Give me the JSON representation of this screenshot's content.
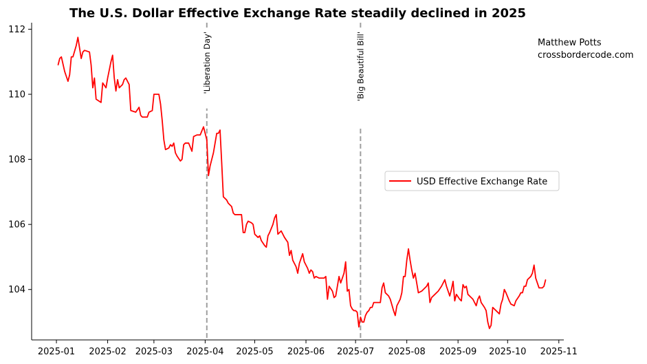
{
  "chart_data": {
    "type": "line",
    "title": "The U.S. Dollar Effective Exchange Rate steadily declined in 2025",
    "xlabel": "",
    "ylabel": "",
    "x_ticks": [
      "2025-01",
      "2025-02",
      "2025-03",
      "2025-04",
      "2025-05",
      "2025-06",
      "2025-07",
      "2025-08",
      "2025-09",
      "2025-10",
      "2025-11"
    ],
    "y_ticks": [
      104,
      106,
      108,
      110,
      112
    ],
    "ylim": [
      102.45,
      112.2
    ],
    "xlim": [
      "2024-12-17",
      "2025-11-04"
    ],
    "legend": {
      "placement": "center-right",
      "label": "USD Effective Exchange Rate"
    },
    "annotations": [
      {
        "date": "2025-04-02",
        "label": "'Liberation Day'"
      },
      {
        "date": "2025-07-04",
        "label": "'Big Beautiful Bill'"
      }
    ],
    "credit": [
      "Matthew Potts",
      "crossbordercode.com"
    ],
    "series": [
      {
        "name": "USD Effective Exchange Rate",
        "color": "#ff0000",
        "points": [
          [
            "2025-01-02",
            110.9
          ],
          [
            "2025-01-03",
            111.1
          ],
          [
            "2025-01-04",
            111.15
          ],
          [
            "2025-01-06",
            110.7
          ],
          [
            "2025-01-08",
            110.4
          ],
          [
            "2025-01-09",
            110.6
          ],
          [
            "2025-01-10",
            111.15
          ],
          [
            "2025-01-11",
            111.15
          ],
          [
            "2025-01-13",
            111.5
          ],
          [
            "2025-01-14",
            111.75
          ],
          [
            "2025-01-16",
            111.1
          ],
          [
            "2025-01-17",
            111.3
          ],
          [
            "2025-01-18",
            111.35
          ],
          [
            "2025-01-21",
            111.3
          ],
          [
            "2025-01-22",
            110.9
          ],
          [
            "2025-01-23",
            110.2
          ],
          [
            "2025-01-24",
            110.5
          ],
          [
            "2025-01-25",
            109.85
          ],
          [
            "2025-01-28",
            109.75
          ],
          [
            "2025-01-29",
            110.35
          ],
          [
            "2025-01-31",
            110.2
          ],
          [
            "2025-02-01",
            110.5
          ],
          [
            "2025-02-03",
            111.0
          ],
          [
            "2025-02-04",
            111.2
          ],
          [
            "2025-02-05",
            110.5
          ],
          [
            "2025-02-06",
            110.1
          ],
          [
            "2025-02-07",
            110.45
          ],
          [
            "2025-02-08",
            110.2
          ],
          [
            "2025-02-10",
            110.3
          ],
          [
            "2025-02-11",
            110.45
          ],
          [
            "2025-02-12",
            110.5
          ],
          [
            "2025-02-14",
            110.3
          ],
          [
            "2025-02-15",
            109.5
          ],
          [
            "2025-02-18",
            109.45
          ],
          [
            "2025-02-20",
            109.6
          ],
          [
            "2025-02-21",
            109.35
          ],
          [
            "2025-02-22",
            109.3
          ],
          [
            "2025-02-25",
            109.3
          ],
          [
            "2025-02-26",
            109.45
          ],
          [
            "2025-02-28",
            109.5
          ],
          [
            "2025-03-01",
            110.0
          ],
          [
            "2025-03-04",
            110.0
          ],
          [
            "2025-03-05",
            109.7
          ],
          [
            "2025-03-06",
            109.2
          ],
          [
            "2025-03-07",
            108.6
          ],
          [
            "2025-03-08",
            108.3
          ],
          [
            "2025-03-10",
            108.35
          ],
          [
            "2025-03-11",
            108.45
          ],
          [
            "2025-03-12",
            108.4
          ],
          [
            "2025-03-13",
            108.5
          ],
          [
            "2025-03-14",
            108.2
          ],
          [
            "2025-03-15",
            108.1
          ],
          [
            "2025-03-17",
            107.95
          ],
          [
            "2025-03-18",
            108.0
          ],
          [
            "2025-03-19",
            108.45
          ],
          [
            "2025-03-20",
            108.5
          ],
          [
            "2025-03-21",
            108.5
          ],
          [
            "2025-03-22",
            108.5
          ],
          [
            "2025-03-24",
            108.25
          ],
          [
            "2025-03-25",
            108.7
          ],
          [
            "2025-03-27",
            108.75
          ],
          [
            "2025-03-28",
            108.75
          ],
          [
            "2025-03-29",
            108.75
          ],
          [
            "2025-03-31",
            109.0
          ],
          [
            "2025-04-01",
            108.8
          ],
          [
            "2025-04-02",
            108.6
          ],
          [
            "2025-04-03",
            107.5
          ],
          [
            "2025-04-04",
            107.8
          ],
          [
            "2025-04-06",
            108.2
          ],
          [
            "2025-04-07",
            108.5
          ],
          [
            "2025-04-08",
            108.8
          ],
          [
            "2025-04-09",
            108.8
          ],
          [
            "2025-04-10",
            108.9
          ],
          [
            "2025-04-11",
            107.9
          ],
          [
            "2025-04-12",
            106.85
          ],
          [
            "2025-04-14",
            106.75
          ],
          [
            "2025-04-15",
            106.65
          ],
          [
            "2025-04-17",
            106.55
          ],
          [
            "2025-04-18",
            106.35
          ],
          [
            "2025-04-19",
            106.3
          ],
          [
            "2025-04-21",
            106.3
          ],
          [
            "2025-04-23",
            106.3
          ],
          [
            "2025-04-24",
            105.75
          ],
          [
            "2025-04-25",
            105.75
          ],
          [
            "2025-04-26",
            106.0
          ],
          [
            "2025-04-27",
            106.1
          ],
          [
            "2025-04-29",
            106.05
          ],
          [
            "2025-04-30",
            106.0
          ],
          [
            "2025-05-01",
            105.7
          ],
          [
            "2025-05-02",
            105.65
          ],
          [
            "2025-05-03",
            105.6
          ],
          [
            "2025-05-04",
            105.65
          ],
          [
            "2025-05-05",
            105.5
          ],
          [
            "2025-05-07",
            105.35
          ],
          [
            "2025-05-08",
            105.3
          ],
          [
            "2025-05-09",
            105.65
          ],
          [
            "2025-05-10",
            105.75
          ],
          [
            "2025-05-12",
            106.0
          ],
          [
            "2025-05-13",
            106.2
          ],
          [
            "2025-05-14",
            106.3
          ],
          [
            "2025-05-15",
            105.7
          ],
          [
            "2025-05-16",
            105.75
          ],
          [
            "2025-05-17",
            105.8
          ],
          [
            "2025-05-19",
            105.6
          ],
          [
            "2025-05-21",
            105.45
          ],
          [
            "2025-05-22",
            105.05
          ],
          [
            "2025-05-23",
            105.2
          ],
          [
            "2025-05-24",
            104.9
          ],
          [
            "2025-05-26",
            104.7
          ],
          [
            "2025-05-27",
            104.5
          ],
          [
            "2025-05-28",
            104.8
          ],
          [
            "2025-05-30",
            105.1
          ],
          [
            "2025-05-31",
            104.85
          ],
          [
            "2025-06-02",
            104.65
          ],
          [
            "2025-06-03",
            104.5
          ],
          [
            "2025-06-04",
            104.6
          ],
          [
            "2025-06-05",
            104.55
          ],
          [
            "2025-06-06",
            104.35
          ],
          [
            "2025-06-07",
            104.4
          ],
          [
            "2025-06-09",
            104.35
          ],
          [
            "2025-06-10",
            104.35
          ],
          [
            "2025-06-12",
            104.35
          ],
          [
            "2025-06-13",
            104.4
          ],
          [
            "2025-06-14",
            103.7
          ],
          [
            "2025-06-15",
            104.1
          ],
          [
            "2025-06-17",
            103.95
          ],
          [
            "2025-06-18",
            103.75
          ],
          [
            "2025-06-19",
            103.8
          ],
          [
            "2025-06-20",
            104.1
          ],
          [
            "2025-06-21",
            104.4
          ],
          [
            "2025-06-22",
            104.2
          ],
          [
            "2025-06-24",
            104.5
          ],
          [
            "2025-06-25",
            104.85
          ],
          [
            "2025-06-26",
            103.95
          ],
          [
            "2025-06-27",
            104.0
          ],
          [
            "2025-06-28",
            103.5
          ],
          [
            "2025-06-29",
            103.4
          ],
          [
            "2025-06-30",
            103.35
          ],
          [
            "2025-07-01",
            103.35
          ],
          [
            "2025-07-02",
            103.3
          ],
          [
            "2025-07-03",
            102.85
          ],
          [
            "2025-07-04",
            103.15
          ],
          [
            "2025-07-05",
            103.0
          ],
          [
            "2025-07-06",
            103.0
          ],
          [
            "2025-07-07",
            103.2
          ],
          [
            "2025-07-08",
            103.3
          ],
          [
            "2025-07-09",
            103.35
          ],
          [
            "2025-07-10",
            103.45
          ],
          [
            "2025-07-11",
            103.45
          ],
          [
            "2025-07-12",
            103.6
          ],
          [
            "2025-07-14",
            103.6
          ],
          [
            "2025-07-16",
            103.6
          ],
          [
            "2025-07-17",
            104.05
          ],
          [
            "2025-07-18",
            104.2
          ],
          [
            "2025-07-19",
            103.9
          ],
          [
            "2025-07-21",
            103.8
          ],
          [
            "2025-07-22",
            103.7
          ],
          [
            "2025-07-24",
            103.35
          ],
          [
            "2025-07-25",
            103.2
          ],
          [
            "2025-07-26",
            103.5
          ],
          [
            "2025-07-28",
            103.7
          ],
          [
            "2025-07-29",
            103.9
          ],
          [
            "2025-07-30",
            104.4
          ],
          [
            "2025-07-31",
            104.4
          ],
          [
            "2025-08-01",
            104.9
          ],
          [
            "2025-08-02",
            105.25
          ],
          [
            "2025-08-03",
            104.9
          ],
          [
            "2025-08-04",
            104.6
          ],
          [
            "2025-08-05",
            104.35
          ],
          [
            "2025-08-06",
            104.5
          ],
          [
            "2025-08-07",
            104.2
          ],
          [
            "2025-08-08",
            103.9
          ],
          [
            "2025-08-10",
            103.95
          ],
          [
            "2025-08-11",
            104.0
          ],
          [
            "2025-08-13",
            104.1
          ],
          [
            "2025-08-14",
            104.2
          ],
          [
            "2025-08-15",
            103.6
          ],
          [
            "2025-08-16",
            103.75
          ],
          [
            "2025-08-18",
            103.85
          ],
          [
            "2025-08-20",
            103.95
          ],
          [
            "2025-08-22",
            104.1
          ],
          [
            "2025-08-24",
            104.3
          ],
          [
            "2025-08-25",
            104.1
          ],
          [
            "2025-08-27",
            103.8
          ],
          [
            "2025-08-28",
            104.0
          ],
          [
            "2025-08-29",
            104.25
          ],
          [
            "2025-08-30",
            103.65
          ],
          [
            "2025-08-31",
            103.85
          ],
          [
            "2025-09-02",
            103.7
          ],
          [
            "2025-09-03",
            103.65
          ],
          [
            "2025-09-04",
            104.15
          ],
          [
            "2025-09-05",
            104.05
          ],
          [
            "2025-09-06",
            104.1
          ],
          [
            "2025-09-07",
            103.85
          ],
          [
            "2025-09-09",
            103.75
          ],
          [
            "2025-09-10",
            103.7
          ],
          [
            "2025-09-12",
            103.5
          ],
          [
            "2025-09-13",
            103.7
          ],
          [
            "2025-09-14",
            103.8
          ],
          [
            "2025-09-15",
            103.6
          ],
          [
            "2025-09-17",
            103.45
          ],
          [
            "2025-09-18",
            103.35
          ],
          [
            "2025-09-19",
            103.0
          ],
          [
            "2025-09-20",
            102.8
          ],
          [
            "2025-09-21",
            102.9
          ],
          [
            "2025-09-22",
            103.45
          ],
          [
            "2025-09-24",
            103.35
          ],
          [
            "2025-09-26",
            103.25
          ],
          [
            "2025-09-27",
            103.55
          ],
          [
            "2025-09-28",
            103.7
          ],
          [
            "2025-09-29",
            104.0
          ],
          [
            "2025-09-30",
            103.9
          ],
          [
            "2025-10-02",
            103.65
          ],
          [
            "2025-10-03",
            103.55
          ],
          [
            "2025-10-05",
            103.5
          ],
          [
            "2025-10-06",
            103.65
          ],
          [
            "2025-10-08",
            103.8
          ],
          [
            "2025-10-09",
            103.9
          ],
          [
            "2025-10-10",
            103.9
          ],
          [
            "2025-10-11",
            104.1
          ],
          [
            "2025-10-12",
            104.1
          ],
          [
            "2025-10-13",
            104.3
          ],
          [
            "2025-10-15",
            104.4
          ],
          [
            "2025-10-16",
            104.5
          ],
          [
            "2025-10-17",
            104.75
          ],
          [
            "2025-10-18",
            104.35
          ],
          [
            "2025-10-20",
            104.05
          ],
          [
            "2025-10-22",
            104.05
          ],
          [
            "2025-10-23",
            104.1
          ],
          [
            "2025-10-24",
            104.3
          ]
        ]
      }
    ]
  }
}
